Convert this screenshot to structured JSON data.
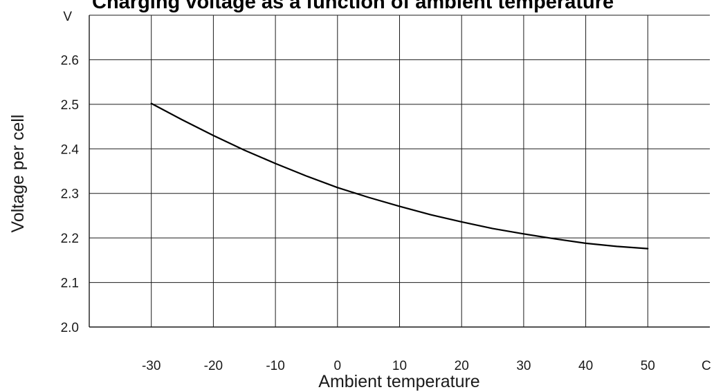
{
  "chart_data": {
    "type": "line",
    "title": "Charging voltage as a function of ambient temperature",
    "xlabel": "Ambient temperature",
    "ylabel": "Voltage per cell",
    "x_unit": "C",
    "y_unit": "V",
    "xlim": [
      -40,
      60
    ],
    "ylim": [
      2.0,
      2.7
    ],
    "x_ticks": [
      "-30",
      "-20",
      "-10",
      "0",
      "10",
      "20",
      "30",
      "40",
      "50"
    ],
    "y_ticks": [
      "2.0",
      "2.1",
      "2.2",
      "2.3",
      "2.4",
      "2.5",
      "2.6"
    ],
    "grid": true,
    "series": [
      {
        "color": "#000000",
        "x": [
          -30,
          -25,
          -20,
          -15,
          -10,
          -5,
          0,
          5,
          10,
          15,
          20,
          25,
          30,
          35,
          40,
          45,
          50
        ],
        "y": [
          2.502,
          2.465,
          2.43,
          2.397,
          2.367,
          2.339,
          2.313,
          2.291,
          2.271,
          2.252,
          2.236,
          2.221,
          2.209,
          2.198,
          2.188,
          2.181,
          2.176
        ]
      }
    ]
  }
}
